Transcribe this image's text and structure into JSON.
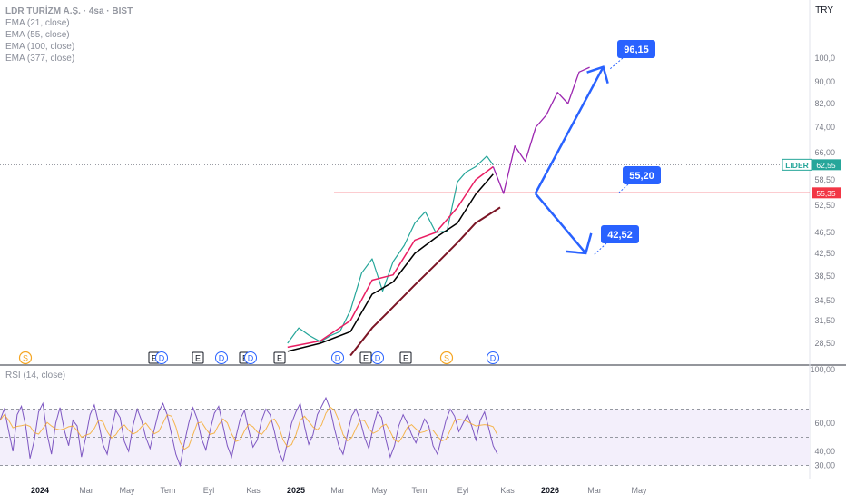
{
  "header": {
    "symbol": "LDR TURİZM A.Ş. · 4sa · BIST",
    "currency": "TRY",
    "indicators": [
      "EMA (21, close)",
      "EMA (55, close)",
      "EMA (100, close)",
      "EMA (377, close)"
    ],
    "rsi_label": "RSI (14, close)"
  },
  "colors": {
    "price_candles": "#26a69a",
    "ema21": "#e91e63",
    "ema55": "#000000",
    "ema377": "#7b1525",
    "projection": "#9c27b0",
    "arrow": "#2962ff",
    "resistance_line": "#f23645",
    "rsi_line": "#7e57c2",
    "rsi_fill": "#f3effb"
  },
  "chart_data": [
    {
      "type": "line",
      "title": "LDR TURİZM A.Ş. · 4sa · BIST",
      "scale": "log",
      "y_ticks": [
        "100,0",
        "90,00",
        "82,00",
        "74,00",
        "66,00",
        "58,50",
        "52,50",
        "46,50",
        "42,50",
        "38,50",
        "34,50",
        "31,50",
        "28,50"
      ],
      "x_ticks": [
        "2024",
        "Mar",
        "May",
        "Tem",
        "Eyl",
        "Kas",
        "2025",
        "Mar",
        "May",
        "Tem",
        "Eyl",
        "Kas",
        "2026",
        "Mar",
        "May"
      ],
      "last_price": {
        "label": "LIDER",
        "value": "62,55"
      },
      "level_line": {
        "value": "55,35"
      },
      "targets": [
        {
          "label": "96,15",
          "value": 96.15
        },
        {
          "label": "55,20",
          "value": 55.2
        },
        {
          "label": "42,52",
          "value": 42.52
        }
      ],
      "event_markers": [
        "S",
        "E",
        "D",
        "E",
        "D",
        "E",
        "D",
        "E",
        "D",
        "E",
        "D",
        "E",
        "S",
        "D"
      ],
      "series": [
        {
          "name": "Price",
          "x": [
            "2024-12-20",
            "2025-01-05",
            "2025-01-20",
            "2025-02-05",
            "2025-02-20",
            "2025-03-05",
            "2025-03-20",
            "2025-04-05",
            "2025-04-20",
            "2025-05-05",
            "2025-05-20",
            "2025-06-05",
            "2025-06-20",
            "2025-07-05",
            "2025-07-20",
            "2025-08-05",
            "2025-08-20",
            "2025-09-01",
            "2025-09-15",
            "2025-10-01",
            "2025-10-10"
          ],
          "y": [
            28.5,
            30.5,
            29.5,
            28.7,
            29.5,
            30.0,
            33.0,
            39.0,
            41.5,
            36.0,
            41.0,
            44.0,
            48.5,
            51.0,
            46.5,
            46.8,
            58.0,
            60.5,
            62.0,
            65.0,
            62.5
          ]
        },
        {
          "name": "EMA (21, close)",
          "x": [
            "2024-12-20",
            "2025-02-05",
            "2025-03-20",
            "2025-04-20",
            "2025-05-20",
            "2025-06-20",
            "2025-07-20",
            "2025-08-20",
            "2025-09-15",
            "2025-10-10"
          ],
          "y": [
            28.0,
            28.8,
            31.5,
            37.8,
            38.7,
            45.0,
            46.5,
            52.0,
            58.5,
            62.0
          ]
        },
        {
          "name": "EMA (55, close)",
          "x": [
            "2024-12-20",
            "2025-02-05",
            "2025-03-20",
            "2025-04-20",
            "2025-05-20",
            "2025-06-20",
            "2025-07-20",
            "2025-08-20",
            "2025-09-15",
            "2025-10-10"
          ],
          "y": [
            27.5,
            28.5,
            30.0,
            35.5,
            37.5,
            42.5,
            45.5,
            48.5,
            55.0,
            60.0
          ]
        },
        {
          "name": "EMA (377, close)",
          "x": [
            "2025-03-20",
            "2025-04-20",
            "2025-05-20",
            "2025-06-20",
            "2025-07-20",
            "2025-08-20",
            "2025-09-15",
            "2025-10-20"
          ],
          "y": [
            27.0,
            30.5,
            33.5,
            37.0,
            40.5,
            44.5,
            48.5,
            52.0
          ]
        },
        {
          "name": "Projection",
          "x": [
            "2025-10-10",
            "2025-10-25",
            "2025-11-10",
            "2025-11-25",
            "2025-12-10",
            "2025-12-25",
            "2026-01-10",
            "2026-01-25",
            "2026-02-10",
            "2026-02-25"
          ],
          "y": [
            62.0,
            55.2,
            68.0,
            63.5,
            74.0,
            78.0,
            86.0,
            82.0,
            94.0,
            96.0
          ]
        }
      ]
    },
    {
      "type": "line",
      "title": "RSI (14, close)",
      "y_ticks": [
        "100,00",
        "60,00",
        "40,00",
        "30,00"
      ],
      "bands": [
        30,
        70
      ],
      "midline": 50,
      "series": [
        {
          "name": "RSI",
          "y": [
            62,
            70,
            55,
            40,
            66,
            72,
            58,
            35,
            48,
            68,
            74,
            52,
            38,
            60,
            71,
            55,
            44,
            62,
            58,
            36,
            50,
            66,
            73,
            60,
            45,
            38,
            55,
            69,
            64,
            47,
            40,
            58,
            70,
            62,
            50,
            42,
            56,
            68,
            74,
            66,
            52,
            38,
            30,
            46,
            60,
            71,
            63,
            49,
            41,
            55,
            67,
            72,
            58,
            44,
            36,
            50,
            63,
            69,
            55,
            43,
            48,
            62,
            70,
            66,
            54,
            40,
            33,
            46,
            60,
            68,
            74,
            58,
            45,
            52,
            66,
            72,
            78,
            70,
            56,
            44,
            38,
            52,
            65,
            70,
            62,
            50,
            42,
            57,
            68,
            64,
            48,
            36,
            44,
            58,
            66,
            60,
            52,
            46,
            55,
            63,
            58,
            44,
            38,
            50,
            62,
            70,
            65,
            54,
            60,
            66,
            58,
            48,
            62,
            68,
            56,
            44,
            38
          ]
        }
      ]
    }
  ]
}
